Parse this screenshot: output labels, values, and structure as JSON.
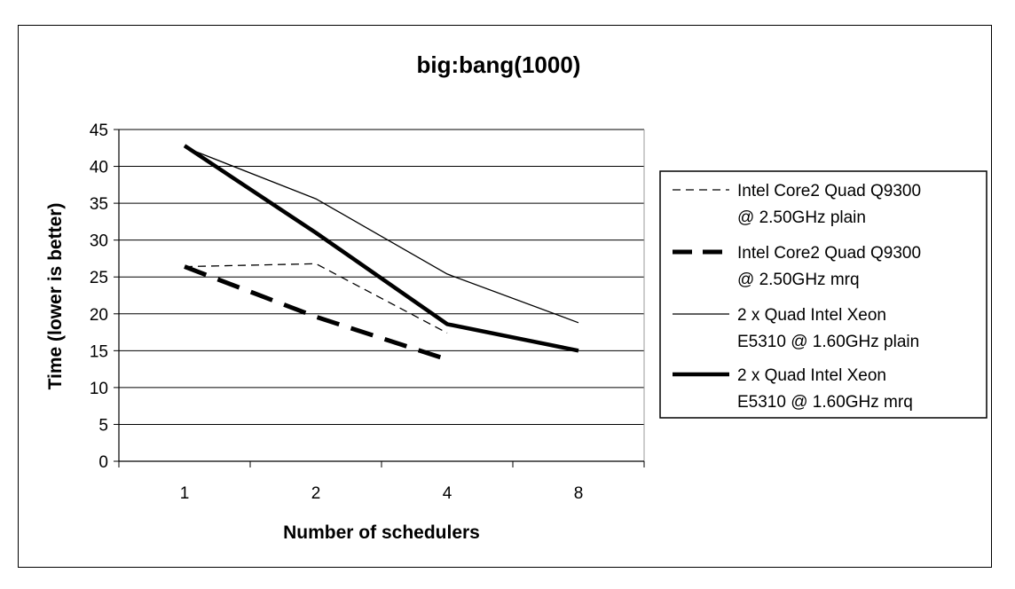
{
  "chart_data": {
    "type": "line",
    "title": "big:bang(1000)",
    "xlabel": "Number of schedulers",
    "ylabel": "Time (lower is better)",
    "categories": [
      "1",
      "2",
      "4",
      "8"
    ],
    "ylim": [
      0,
      45
    ],
    "yticks": [
      0,
      5,
      10,
      15,
      20,
      25,
      30,
      35,
      40,
      45
    ],
    "grid": true,
    "legend_position": "right",
    "series": [
      {
        "name_lines": [
          "Intel Core2 Quad  Q9300",
          "@ 2.50GHz plain"
        ],
        "values": [
          26.4,
          26.8,
          17.4,
          null
        ],
        "style": "thin-dashed"
      },
      {
        "name_lines": [
          "Intel Core2 Quad  Q9300",
          "@ 2.50GHz mrq"
        ],
        "values": [
          26.4,
          19.6,
          13.8,
          null
        ],
        "style": "thick-dashed"
      },
      {
        "name_lines": [
          "2 x Quad Intel Xeon",
          "E5310  @ 1.60GHz plain"
        ],
        "values": [
          42.6,
          35.6,
          25.4,
          18.8
        ],
        "style": "thin-solid"
      },
      {
        "name_lines": [
          "2 x Quad Intel Xeon",
          "E5310  @ 1.60GHz mrq"
        ],
        "values": [
          42.8,
          31.0,
          18.6,
          15.0
        ],
        "style": "thick-solid"
      }
    ]
  }
}
